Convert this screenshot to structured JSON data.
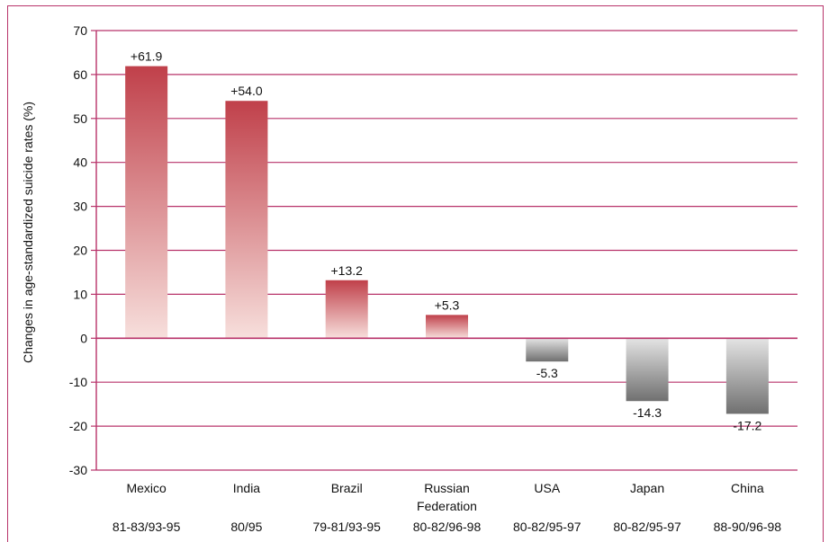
{
  "chart_data": {
    "type": "bar",
    "ylabel": "Changes in age-standardized suicide rates (%)",
    "ylim": [
      -30,
      70
    ],
    "yticks": [
      70,
      60,
      50,
      40,
      30,
      20,
      10,
      0,
      -10,
      -20,
      -30
    ],
    "grid": true,
    "categories": [
      {
        "name": [
          "Mexico"
        ],
        "period": "81-83/93-95"
      },
      {
        "name": [
          "India"
        ],
        "period": "80/95"
      },
      {
        "name": [
          "Brazil"
        ],
        "period": "79-81/93-95"
      },
      {
        "name": [
          "Russian",
          "Federation"
        ],
        "period": "80-82/96-98"
      },
      {
        "name": [
          "USA"
        ],
        "period": "80-82/95-97"
      },
      {
        "name": [
          "Japan"
        ],
        "period": "80-82/95-97"
      },
      {
        "name": [
          "China"
        ],
        "period": "88-90/96-98"
      }
    ],
    "values": [
      61.9,
      54.0,
      13.2,
      5.3,
      -5.3,
      -14.3,
      -17.2
    ],
    "value_labels": [
      "+61.9",
      "+54.0",
      "+13.2",
      "+5.3",
      "-5.3",
      "-14.3",
      "-17.2"
    ],
    "colors": {
      "axis": "#b8336a",
      "positive_top": "#c0404a",
      "positive_bottom": "#f7dfdc",
      "negative_top": "#e4e4e4",
      "negative_bottom": "#707070"
    }
  }
}
